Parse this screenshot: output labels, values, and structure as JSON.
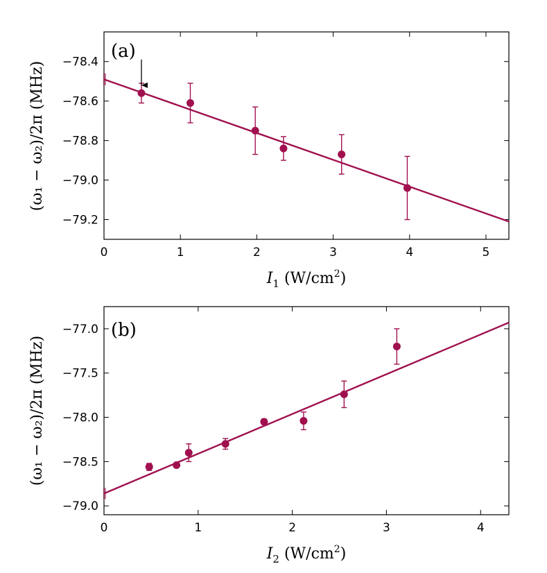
{
  "colors": {
    "series": "#a0104f",
    "axis": "#000000",
    "background": "#ffffff"
  },
  "chart_data": [
    {
      "type": "scatter",
      "panel_label": "(a)",
      "xlabel_var": "I",
      "xlabel_sub": "1",
      "xlabel_unit": "(W/cm",
      "xlabel_sup": "2",
      "xlabel_close": ")",
      "ylabel": "(ω₁ − ω₂)/2π (MHz)",
      "xlim": [
        0,
        5.3
      ],
      "ylim": [
        -79.3,
        -78.25
      ],
      "xticks": [
        0,
        1,
        2,
        3,
        4,
        5
      ],
      "xtick_labels": [
        "0",
        "1",
        "2",
        "3",
        "4",
        "5"
      ],
      "yticks": [
        -79.2,
        -79.0,
        -78.8,
        -78.6,
        -78.4
      ],
      "ytick_labels": [
        "−79.2",
        "−79.0",
        "−78.8",
        "−78.6",
        "−78.4"
      ],
      "points": [
        {
          "x": 0.49,
          "y": -78.56,
          "err": 0.05
        },
        {
          "x": 1.13,
          "y": -78.61,
          "err": 0.1
        },
        {
          "x": 1.98,
          "y": -78.75,
          "err": 0.12
        },
        {
          "x": 2.35,
          "y": -78.84,
          "err": 0.06
        },
        {
          "x": 3.11,
          "y": -78.87,
          "err": 0.1
        },
        {
          "x": 3.97,
          "y": -79.04,
          "err": 0.16
        }
      ],
      "fit": {
        "x0": 0,
        "y0": -78.49,
        "x1": 5.3,
        "y1": -79.21
      },
      "intercept_marker": {
        "x": 0,
        "y": -78.49,
        "err": 0.02
      },
      "arrow": {
        "x": 0.49,
        "y_from": -78.39,
        "y_to": -78.52
      }
    },
    {
      "type": "scatter",
      "panel_label": "(b)",
      "xlabel_var": "I",
      "xlabel_sub": "2",
      "xlabel_unit": "(W/cm",
      "xlabel_sup": "2",
      "xlabel_close": ")",
      "ylabel": "(ω₁ − ω₂)/2π (MHz)",
      "xlim": [
        0,
        4.3
      ],
      "ylim": [
        -79.1,
        -76.75
      ],
      "xticks": [
        0,
        1,
        2,
        3,
        4
      ],
      "xtick_labels": [
        "0",
        "1",
        "2",
        "3",
        "4"
      ],
      "yticks": [
        -79.0,
        -78.5,
        -78.0,
        -77.5,
        -77.0
      ],
      "ytick_labels": [
        "−79.0",
        "−78.5",
        "−78.0",
        "−77.5",
        "−77.0"
      ],
      "points": [
        {
          "x": 0.48,
          "y": -78.56,
          "err": 0.04
        },
        {
          "x": 0.77,
          "y": -78.54,
          "err": 0.02
        },
        {
          "x": 0.9,
          "y": -78.4,
          "err": 0.1
        },
        {
          "x": 1.29,
          "y": -78.3,
          "err": 0.06
        },
        {
          "x": 1.7,
          "y": -78.05,
          "err": 0.03
        },
        {
          "x": 2.12,
          "y": -78.04,
          "err": 0.1
        },
        {
          "x": 2.55,
          "y": -77.74,
          "err": 0.15
        },
        {
          "x": 3.11,
          "y": -77.2,
          "err": 0.2
        }
      ],
      "fit": {
        "x0": 0,
        "y0": -78.86,
        "x1": 4.3,
        "y1": -76.93
      },
      "intercept_marker": {
        "x": 0,
        "y": -78.86,
        "err": 0.04
      }
    }
  ]
}
